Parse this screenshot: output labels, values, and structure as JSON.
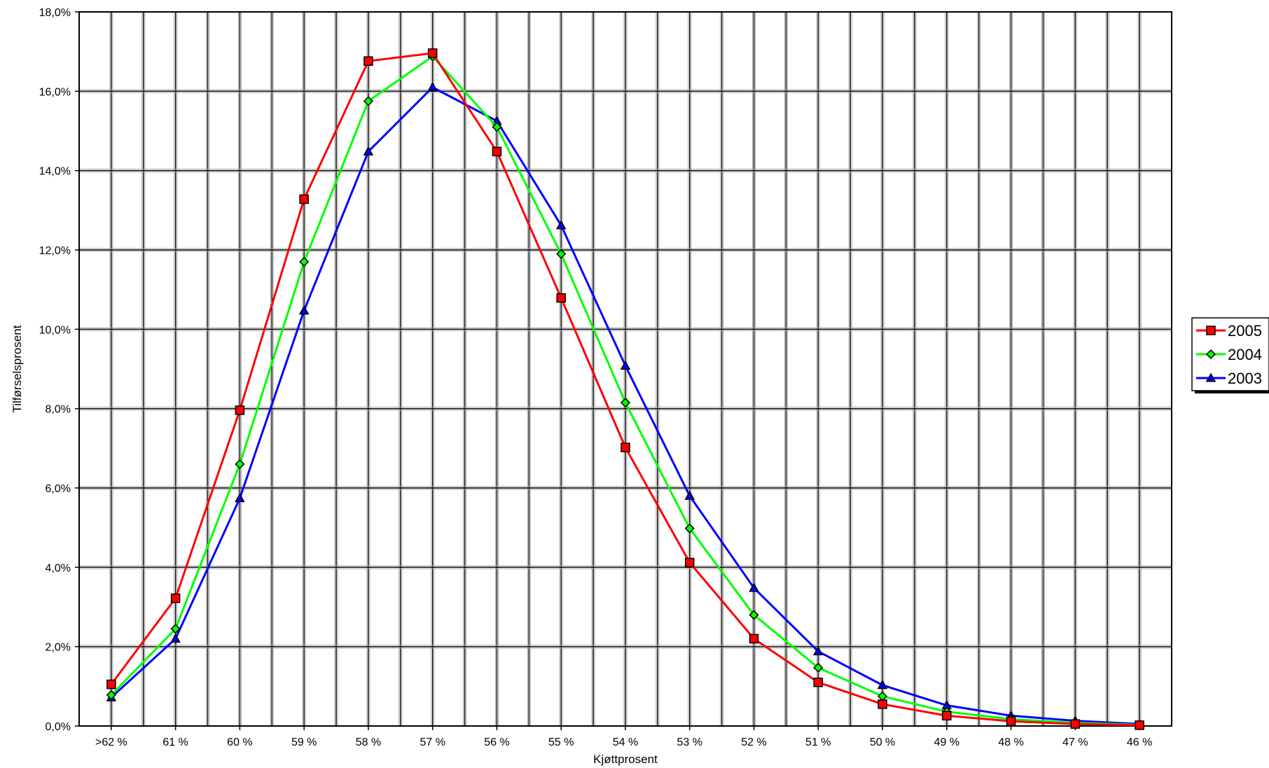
{
  "chart_data": {
    "type": "line",
    "title": "",
    "xlabel": "Kjøttprosent",
    "ylabel": "Tilførselsprosent",
    "categories": [
      ">62 %",
      "61 %",
      "60 %",
      "59 %",
      "58 %",
      "57 %",
      "56 %",
      "55 %",
      "54 %",
      "53 %",
      "52 %",
      "51 %",
      "50 %",
      "49 %",
      "48 %",
      "47 %",
      "46 %"
    ],
    "ylim": [
      0,
      18
    ],
    "yticks": [
      "0,0%",
      "2,0%",
      "4,0%",
      "6,0%",
      "8,0%",
      "10,0%",
      "12,0%",
      "14,0%",
      "16,0%",
      "18,0%"
    ],
    "grid": true,
    "legend_position": "right",
    "series": [
      {
        "name": "2005",
        "color": "#ff0000",
        "marker": "square",
        "values": [
          1.05,
          3.22,
          7.96,
          13.28,
          16.76,
          16.96,
          14.48,
          10.79,
          7.02,
          4.12,
          2.2,
          1.1,
          0.55,
          0.26,
          0.12,
          0.05,
          0.02
        ]
      },
      {
        "name": "2004",
        "color": "#00ff00",
        "marker": "diamond",
        "values": [
          0.78,
          2.45,
          6.6,
          11.7,
          15.75,
          16.88,
          15.1,
          11.9,
          8.15,
          4.98,
          2.8,
          1.47,
          0.75,
          0.36,
          0.17,
          0.08,
          0.03
        ]
      },
      {
        "name": "2003",
        "color": "#0000ff",
        "marker": "triangle",
        "values": [
          0.72,
          2.2,
          5.74,
          10.47,
          14.48,
          16.1,
          15.25,
          12.62,
          9.08,
          5.8,
          3.48,
          1.88,
          1.03,
          0.52,
          0.26,
          0.13,
          0.05
        ]
      }
    ]
  }
}
